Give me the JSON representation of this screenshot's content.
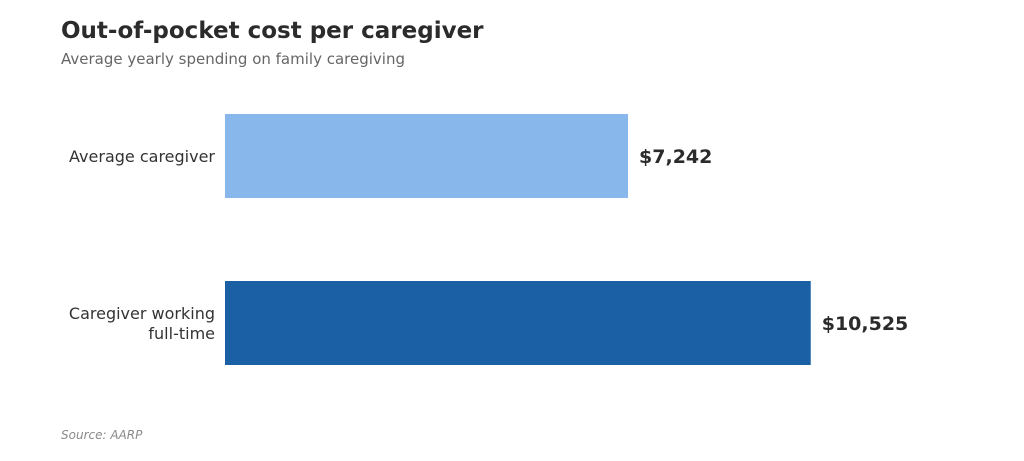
{
  "chart_data": {
    "type": "bar",
    "orientation": "horizontal",
    "title": "Out-of-pocket cost per caregiver",
    "subtitle": "Average yearly spending on family caregiving",
    "source": "Source: AARP",
    "categories": [
      [
        "Average caregiver"
      ],
      [
        "Caregiver working",
        "full-time"
      ]
    ],
    "values": [
      7242,
      10525
    ],
    "value_labels": [
      "$7,242",
      "$10,525"
    ],
    "colors": [
      "#87b7eb",
      "#1b5fa5"
    ],
    "xlim": [
      0,
      11500
    ],
    "grid": false,
    "legend": "none"
  }
}
